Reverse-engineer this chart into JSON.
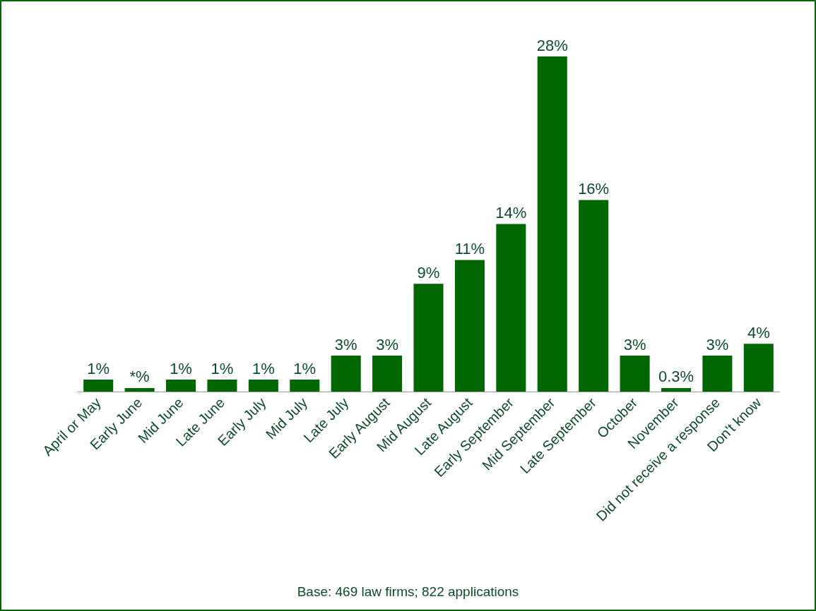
{
  "chart_data": {
    "type": "bar",
    "categories": [
      "April or May",
      "Early June",
      "Mid June",
      "Late June",
      "Early July",
      "Mid July",
      "Late July",
      "Early August",
      "Mid August",
      "Late August",
      "Early September",
      "Mid September",
      "Late September",
      "October",
      "November",
      "Did not receive a response",
      "Don't know"
    ],
    "values": [
      1,
      0.3,
      1,
      1,
      1,
      1,
      3,
      3,
      9,
      11,
      14,
      28,
      16,
      3,
      0.3,
      3,
      4
    ],
    "value_labels": [
      "1%",
      "*%",
      "1%",
      "1%",
      "1%",
      "1%",
      "3%",
      "3%",
      "9%",
      "11%",
      "14%",
      "28%",
      "16%",
      "3%",
      "0.3%",
      "3%",
      "4%"
    ],
    "color": "#006600",
    "annotations": [
      "Base: 469 law firms; 822 applications"
    ]
  }
}
